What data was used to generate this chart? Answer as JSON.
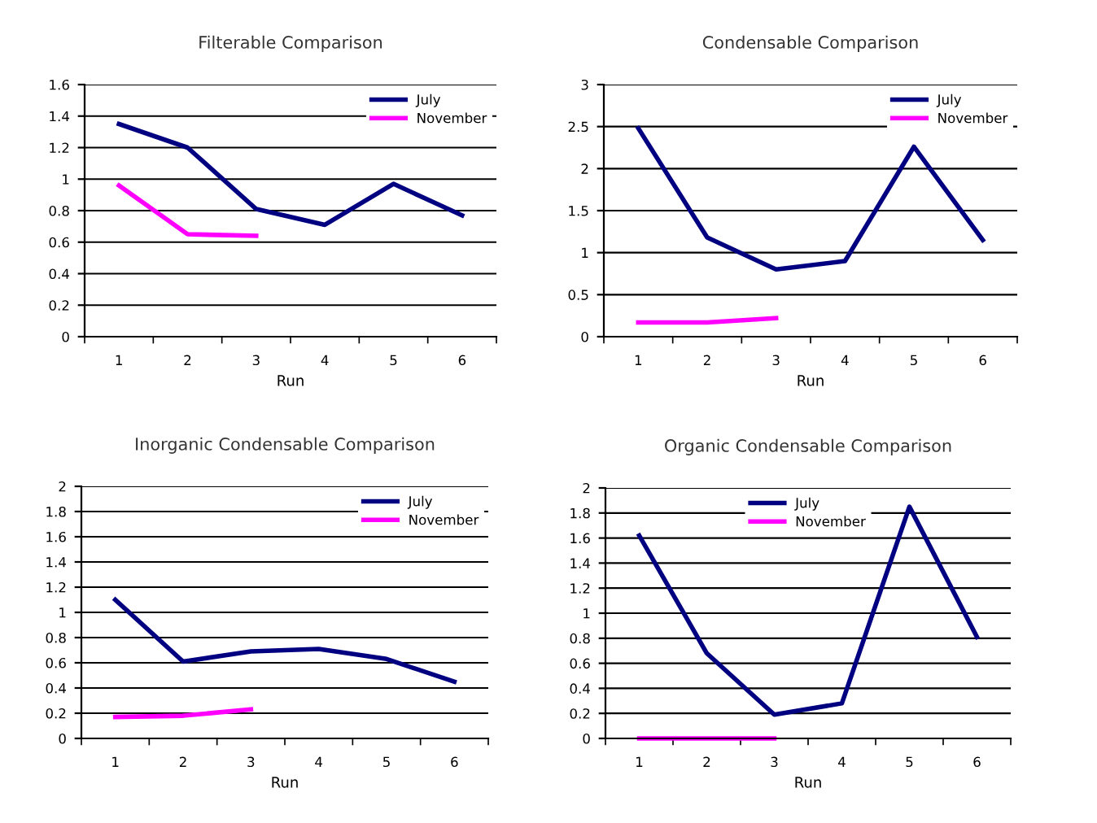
{
  "chart_data": [
    {
      "type": "line",
      "title": "Filterable Comparison",
      "xlabel": "Run",
      "categories": [
        "1",
        "2",
        "3",
        "4",
        "5",
        "6"
      ],
      "series": [
        {
          "name": "July",
          "color": "#000080",
          "values": [
            1.35,
            1.2,
            0.81,
            0.71,
            0.97,
            0.77
          ]
        },
        {
          "name": "November",
          "color": "#ff00ff",
          "values": [
            0.96,
            0.65,
            0.64,
            null,
            null,
            null
          ]
        }
      ],
      "ylim": [
        0,
        1.6
      ],
      "yticks": [
        0,
        0.2,
        0.4,
        0.6,
        0.8,
        1,
        1.2,
        1.4,
        1.6
      ],
      "grid": "y",
      "legend": "top right",
      "marker": "none"
    },
    {
      "type": "line",
      "title": "Condensable Comparison",
      "xlabel": "Run",
      "categories": [
        "1",
        "2",
        "3",
        "4",
        "5",
        "6"
      ],
      "series": [
        {
          "name": "July",
          "color": "#000080",
          "values": [
            2.48,
            1.18,
            0.8,
            0.9,
            2.26,
            1.15
          ]
        },
        {
          "name": "November",
          "color": "#ff00ff",
          "values": [
            0.17,
            0.17,
            0.22,
            null,
            null,
            null
          ]
        }
      ],
      "ylim": [
        0,
        3
      ],
      "yticks": [
        0,
        0.5,
        1,
        1.5,
        2,
        2.5,
        3
      ],
      "grid": "y",
      "legend": "top right",
      "marker": "none"
    },
    {
      "type": "line",
      "title": "Inorganic Condensable Comparison",
      "xlabel": "Run",
      "categories": [
        "1",
        "2",
        "3",
        "4",
        "5",
        "6"
      ],
      "series": [
        {
          "name": "July",
          "color": "#000080",
          "values": [
            1.1,
            0.61,
            0.69,
            0.71,
            0.63,
            0.45
          ]
        },
        {
          "name": "November",
          "color": "#ff00ff",
          "values": [
            0.17,
            0.18,
            0.23,
            null,
            null,
            null
          ]
        }
      ],
      "ylim": [
        0,
        2
      ],
      "yticks": [
        0,
        0.2,
        0.4,
        0.6,
        0.8,
        1,
        1.2,
        1.4,
        1.6,
        1.8,
        2
      ],
      "grid": "y",
      "legend": "top right",
      "marker": "none"
    },
    {
      "type": "line",
      "title": "Organic Condensable Comparison",
      "xlabel": "Run",
      "categories": [
        "1",
        "2",
        "3",
        "4",
        "5",
        "6"
      ],
      "series": [
        {
          "name": "July",
          "color": "#000080",
          "values": [
            1.62,
            0.68,
            0.19,
            0.28,
            1.85,
            0.81
          ]
        },
        {
          "name": "November",
          "color": "#ff00ff",
          "values": [
            0,
            0,
            0,
            null,
            null,
            null
          ]
        }
      ],
      "ylim": [
        0,
        2
      ],
      "yticks": [
        0,
        0.2,
        0.4,
        0.6,
        0.8,
        1,
        1.2,
        1.4,
        1.6,
        1.8,
        2
      ],
      "grid": "y",
      "legend": "top",
      "marker": "none"
    }
  ]
}
